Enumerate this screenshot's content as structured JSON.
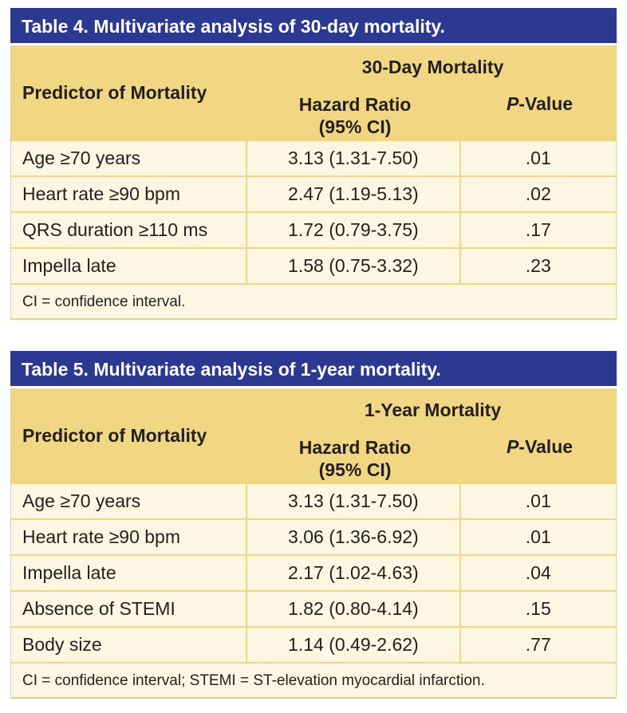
{
  "table4": {
    "title": "Table 4. Multivariate analysis of 30-day mortality.",
    "header": {
      "predictor": "Predictor of Mortality",
      "group": "30-Day Mortality",
      "hr_line1": "Hazard Ratio",
      "hr_line2": "(95% CI)",
      "p_italic": "P",
      "p_rest": "-Value"
    },
    "rows": [
      {
        "predictor": "Age ≥70 years",
        "hr": "3.13 (1.31-7.50)",
        "p": ".01"
      },
      {
        "predictor": "Heart rate ≥90 bpm",
        "hr": "2.47 (1.19-5.13)",
        "p": ".02"
      },
      {
        "predictor": "QRS duration ≥110 ms",
        "hr": "1.72 (0.79-3.75)",
        "p": ".17"
      },
      {
        "predictor": "Impella late",
        "hr": "1.58 (0.75-3.32)",
        "p": ".23"
      }
    ],
    "footnote": "CI = confidence interval."
  },
  "table5": {
    "title": "Table 5. Multivariate analysis of 1-year mortality.",
    "header": {
      "predictor": "Predictor of Mortality",
      "group": "1-Year Mortality",
      "hr_line1": "Hazard Ratio",
      "hr_line2": "(95% CI)",
      "p_italic": "P",
      "p_rest": "-Value"
    },
    "rows": [
      {
        "predictor": "Age ≥70 years",
        "hr": "3.13 (1.31-7.50)",
        "p": ".01"
      },
      {
        "predictor": "Heart rate ≥90 bpm",
        "hr": "3.06 (1.36-6.92)",
        "p": ".01"
      },
      {
        "predictor": "Impella late",
        "hr": "2.17 (1.02-4.63)",
        "p": ".04"
      },
      {
        "predictor": "Absence of STEMI",
        "hr": "1.82 (0.80-4.14)",
        "p": ".15"
      },
      {
        "predictor": "Body size",
        "hr": "1.14 (0.49-2.62)",
        "p": ".77"
      }
    ],
    "footnote": "CI = confidence interval; STEMI = ST-elevation myocardial infarction."
  }
}
